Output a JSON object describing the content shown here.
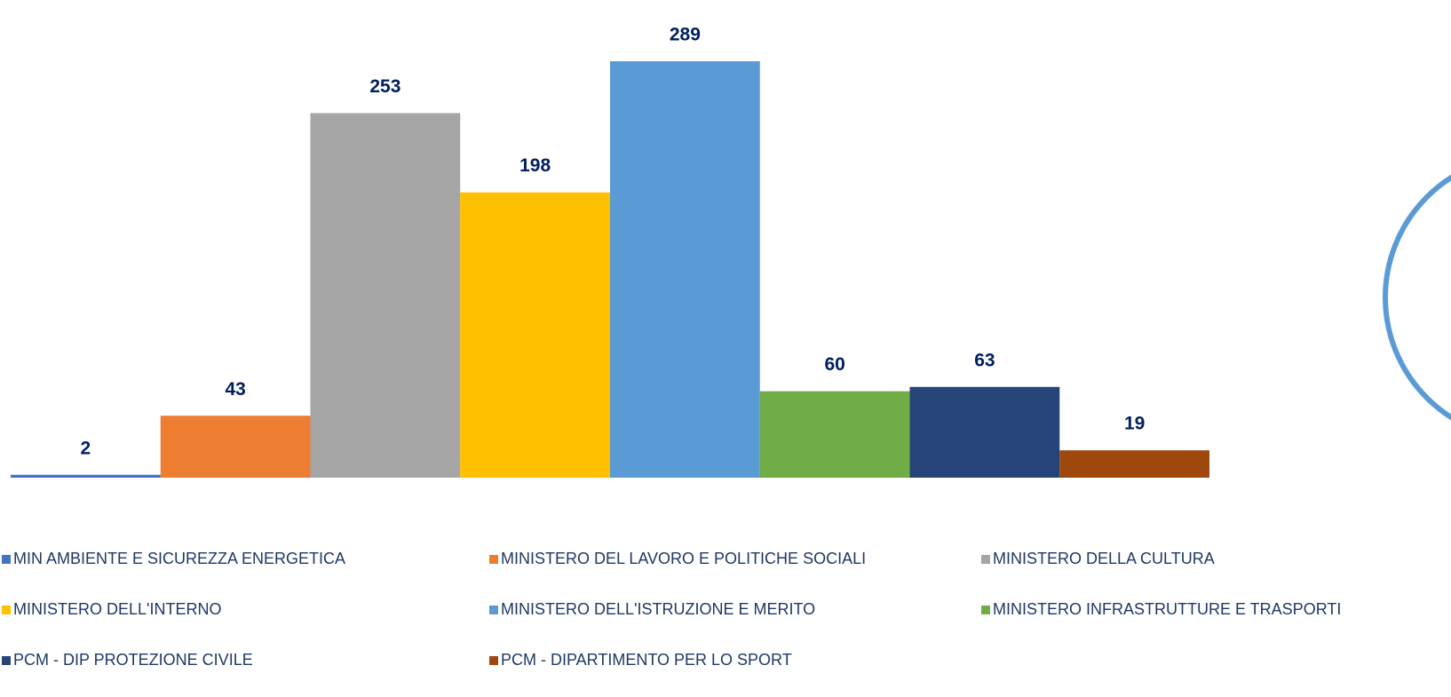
{
  "chart_data": {
    "type": "bar",
    "series": [
      {
        "name": "MIN AMBIENTE E SICUREZZA ENERGETICA",
        "color": "#4472c4",
        "values": [
          2
        ]
      },
      {
        "name": "MINISTERO DEL LAVORO E POLITICHE SOCIALI",
        "color": "#ed7d31",
        "values": [
          43
        ]
      },
      {
        "name": "MINISTERO DELLA CULTURA",
        "color": "#a5a5a5",
        "values": [
          253
        ]
      },
      {
        "name": "MINISTERO DELL'INTERNO",
        "color": "#ffc000",
        "values": [
          198
        ]
      },
      {
        "name": "MINISTERO DELL'ISTRUZIONE E MERITO",
        "color": "#5b9bd5",
        "values": [
          289
        ]
      },
      {
        "name": "MINISTERO INFRASTRUTTURE E TRASPORTI",
        "color": "#70ad47",
        "values": [
          60
        ]
      },
      {
        "name": "PCM - DIP PROTEZIONE CIVILE",
        "color": "#264478",
        "values": [
          63
        ]
      },
      {
        "name": "PCM - DIPARTIMENTO PER LO SPORT",
        "color": "#9e480e",
        "values": [
          19
        ]
      }
    ],
    "legend": "bottom"
  }
}
